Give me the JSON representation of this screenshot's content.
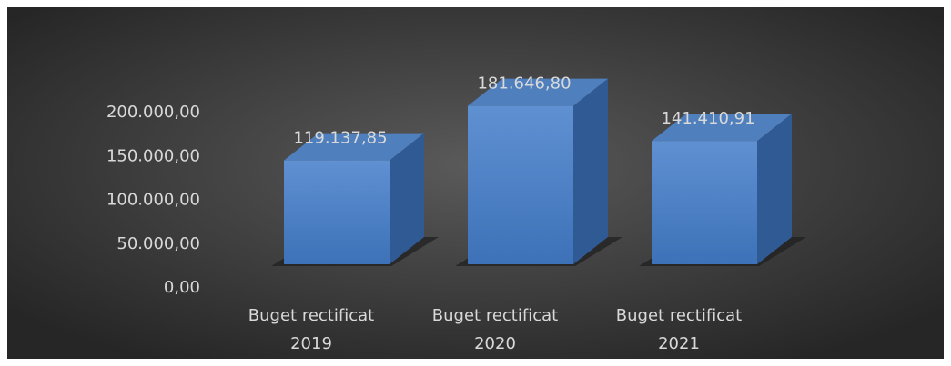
{
  "chart_data": {
    "type": "bar3d",
    "categories": [
      "Buget rectificat 2019",
      "Buget rectificat 2020",
      "Buget rectificat 2021"
    ],
    "values": [
      119137.85,
      181646.8,
      141410.91
    ],
    "value_labels": [
      "119.137,85",
      "181.646,80",
      "141.410,91"
    ],
    "color": "#4a7fc4",
    "ylim": [
      0,
      200000
    ],
    "yticks": [
      {
        "value": 0,
        "label": "0,00"
      },
      {
        "value": 50000,
        "label": "50.000,00"
      },
      {
        "value": 100000,
        "label": "100.000,00"
      },
      {
        "value": 150000,
        "label": "150.000,00"
      },
      {
        "value": 200000,
        "label": "200.000,00"
      }
    ],
    "grid": false
  }
}
